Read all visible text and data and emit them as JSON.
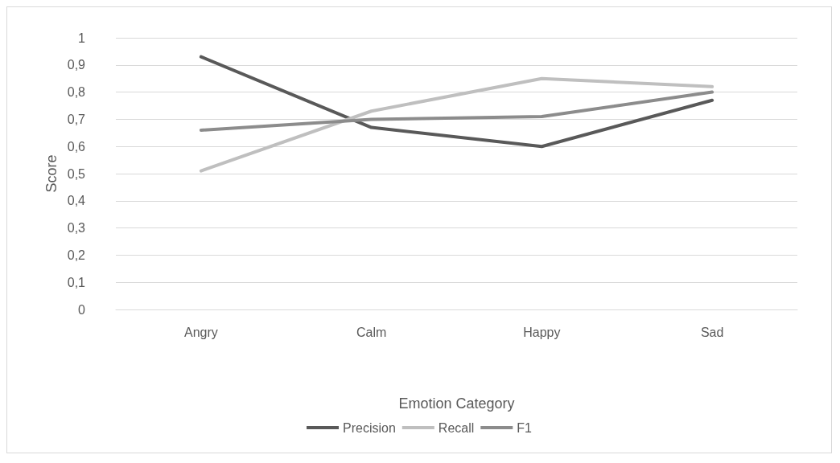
{
  "chart_data": {
    "type": "line",
    "xlabel": "Emotion Category",
    "ylabel": "Score",
    "categories": [
      "Angry",
      "Calm",
      "Happy",
      "Sad"
    ],
    "series": [
      {
        "name": "Precision",
        "color": "#595959",
        "values": [
          0.93,
          0.67,
          0.6,
          0.77
        ]
      },
      {
        "name": "Recall",
        "color": "#bfbfbf",
        "values": [
          0.51,
          0.73,
          0.85,
          0.82
        ]
      },
      {
        "name": "F1",
        "color": "#8c8c8c",
        "values": [
          0.66,
          0.7,
          0.71,
          0.8
        ]
      }
    ],
    "ylim": [
      0,
      1
    ],
    "yticks": [
      0,
      {
        "value": 0.1,
        "label": "0,1"
      },
      {
        "value": 0.2,
        "label": "0,2"
      },
      {
        "value": 0.3,
        "label": "0,3"
      },
      {
        "value": 0.4,
        "label": "0,4"
      },
      {
        "value": 0.5,
        "label": "0,5"
      },
      {
        "value": 0.6,
        "label": "0,6"
      },
      {
        "value": 0.7,
        "label": "0,7"
      },
      {
        "value": 0.8,
        "label": "0,8"
      },
      {
        "value": 0.9,
        "label": "0,9"
      },
      1
    ],
    "grid": "y",
    "legend": "bottom",
    "marker": "none",
    "line_style": "solid"
  }
}
